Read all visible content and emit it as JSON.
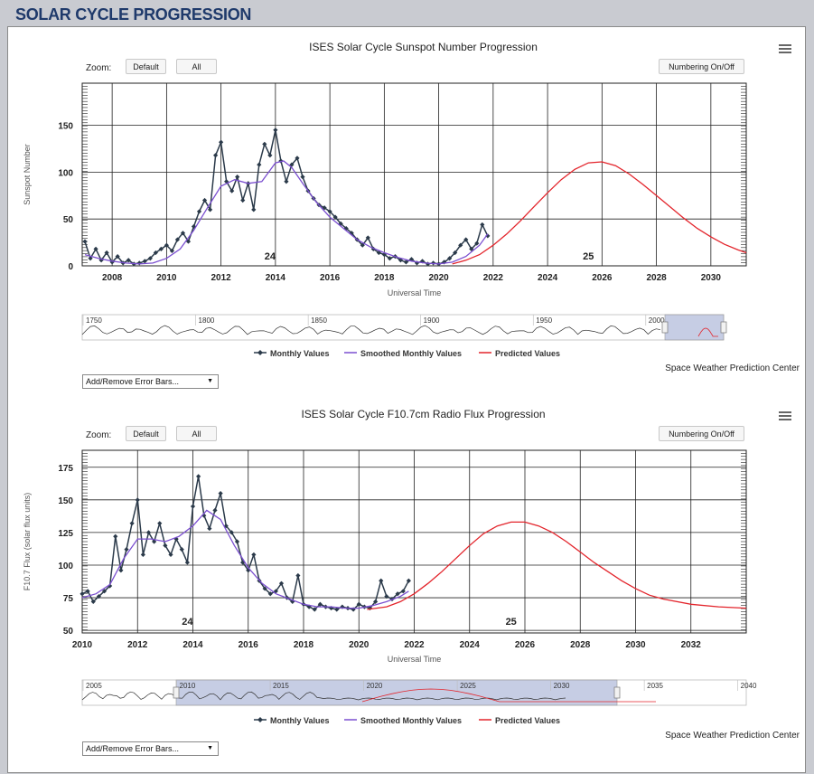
{
  "page": {
    "title": "SOLAR CYCLE PROGRESSION"
  },
  "colors": {
    "monthly": "#2b3a4a",
    "smoothed": "#7b4fd0",
    "predicted": "#e3242b",
    "navigator_fill": "#aeb8d8"
  },
  "charts": [
    {
      "title": "ISES Solar Cycle Sunspot Number Progression",
      "zoom_label": "Zoom:",
      "buttons": {
        "default": "Default",
        "all": "All",
        "numbering": "Numbering On/Off"
      },
      "legend": {
        "monthly": "Monthly Values",
        "smoothed": "Smoothed Monthly Values",
        "predicted": "Predicted Values"
      },
      "credit": "Space Weather Prediction Center",
      "error_bars_select": "Add/Remove Error Bars...",
      "navigator_labels": [
        "1750",
        "1800",
        "1850",
        "1900",
        "1950",
        "2000"
      ]
    },
    {
      "title": "ISES Solar Cycle F10.7cm Radio Flux Progression",
      "zoom_label": "Zoom:",
      "buttons": {
        "default": "Default",
        "all": "All",
        "numbering": "Numbering On/Off"
      },
      "legend": {
        "monthly": "Monthly Values",
        "smoothed": "Smoothed Monthly Values",
        "predicted": "Predicted Values"
      },
      "credit": "Space Weather Prediction Center",
      "error_bars_select": "Add/Remove Error Bars...",
      "navigator_labels": [
        "2005",
        "2010",
        "2015",
        "2020",
        "2025",
        "2030",
        "2035",
        "2040"
      ]
    }
  ],
  "chart_data": [
    {
      "type": "line",
      "title": "ISES Solar Cycle Sunspot Number Progression",
      "xlabel": "Universal Time",
      "ylabel": "Sunspot Number",
      "xlim": [
        2006.9,
        2031.3
      ],
      "ylim": [
        0,
        195
      ],
      "x_ticks": [
        2008,
        2010,
        2012,
        2014,
        2016,
        2018,
        2020,
        2022,
        2024,
        2026,
        2028,
        2030
      ],
      "y_ticks": [
        0,
        50,
        100,
        150
      ],
      "cycle_labels": [
        {
          "text": "24",
          "x": 2013.8,
          "y": 5
        },
        {
          "text": "25",
          "x": 2025.5,
          "y": 5
        }
      ],
      "series": [
        {
          "name": "Monthly Values",
          "x": [
            2007.0,
            2007.2,
            2007.4,
            2007.6,
            2007.8,
            2008.0,
            2008.2,
            2008.4,
            2008.6,
            2008.8,
            2009.0,
            2009.2,
            2009.4,
            2009.6,
            2009.8,
            2010.0,
            2010.2,
            2010.4,
            2010.6,
            2010.8,
            2011.0,
            2011.2,
            2011.4,
            2011.6,
            2011.8,
            2012.0,
            2012.2,
            2012.4,
            2012.6,
            2012.8,
            2013.0,
            2013.2,
            2013.4,
            2013.6,
            2013.8,
            2014.0,
            2014.2,
            2014.4,
            2014.6,
            2014.8,
            2015.0,
            2015.2,
            2015.4,
            2015.6,
            2015.8,
            2016.0,
            2016.2,
            2016.4,
            2016.6,
            2016.8,
            2017.0,
            2017.2,
            2017.4,
            2017.6,
            2017.8,
            2018.0,
            2018.2,
            2018.4,
            2018.6,
            2018.8,
            2019.0,
            2019.2,
            2019.4,
            2019.6,
            2019.8,
            2020.0,
            2020.2,
            2020.4,
            2020.6,
            2020.8,
            2021.0,
            2021.2,
            2021.4,
            2021.6,
            2021.8
          ],
          "values": [
            26,
            8,
            18,
            6,
            14,
            4,
            10,
            3,
            6,
            2,
            3,
            5,
            8,
            14,
            18,
            22,
            16,
            28,
            35,
            26,
            42,
            58,
            70,
            60,
            118,
            132,
            90,
            80,
            95,
            70,
            88,
            60,
            108,
            130,
            118,
            145,
            112,
            90,
            108,
            115,
            95,
            80,
            72,
            65,
            62,
            58,
            52,
            45,
            40,
            35,
            28,
            22,
            30,
            18,
            14,
            12,
            8,
            10,
            6,
            4,
            7,
            3,
            5,
            2,
            3,
            2,
            4,
            8,
            14,
            22,
            28,
            18,
            24,
            44,
            32
          ]
        },
        {
          "name": "Smoothed Monthly Values",
          "x": [
            2007.0,
            2007.5,
            2008.0,
            2008.5,
            2009.0,
            2009.5,
            2010.0,
            2010.5,
            2011.0,
            2011.5,
            2012.0,
            2012.5,
            2013.0,
            2013.5,
            2014.0,
            2014.3,
            2014.6,
            2015.0,
            2015.5,
            2016.0,
            2016.5,
            2017.0,
            2017.5,
            2018.0,
            2018.5,
            2019.0,
            2019.5,
            2020.0,
            2020.5,
            2021.0,
            2021.5,
            2021.8
          ],
          "values": [
            12,
            8,
            5,
            3,
            2,
            3,
            8,
            18,
            38,
            62,
            85,
            92,
            88,
            90,
            110,
            112,
            105,
            88,
            68,
            52,
            40,
            28,
            20,
            14,
            9,
            5,
            3,
            2,
            4,
            10,
            22,
            34
          ]
        },
        {
          "name": "Predicted Values",
          "x": [
            2020.5,
            2021.0,
            2021.5,
            2022.0,
            2022.5,
            2023.0,
            2023.5,
            2024.0,
            2024.5,
            2025.0,
            2025.5,
            2026.0,
            2026.5,
            2027.0,
            2027.5,
            2028.0,
            2028.5,
            2029.0,
            2029.5,
            2030.0,
            2030.5,
            2031.0,
            2031.3
          ],
          "values": [
            2,
            6,
            12,
            22,
            34,
            48,
            63,
            78,
            92,
            103,
            110,
            111,
            107,
            98,
            87,
            75,
            63,
            51,
            40,
            31,
            23,
            17,
            14
          ]
        }
      ]
    },
    {
      "type": "line",
      "title": "ISES Solar Cycle F10.7cm Radio Flux Progression",
      "xlabel": "Universal Time",
      "ylabel": "F10.7 Flux (solar flux units)",
      "xlim": [
        2010.0,
        2034.0
      ],
      "ylim": [
        48,
        188
      ],
      "x_ticks": [
        2010,
        2012,
        2014,
        2016,
        2018,
        2020,
        2022,
        2024,
        2026,
        2028,
        2030,
        2032
      ],
      "y_ticks": [
        50,
        75,
        100,
        125,
        150,
        175
      ],
      "cycle_labels": [
        {
          "text": "24",
          "x": 2013.8,
          "y": 53
        },
        {
          "text": "25",
          "x": 2025.5,
          "y": 53
        }
      ],
      "series": [
        {
          "name": "Monthly Values",
          "x": [
            2010.0,
            2010.2,
            2010.4,
            2010.6,
            2010.8,
            2011.0,
            2011.2,
            2011.4,
            2011.6,
            2011.8,
            2012.0,
            2012.2,
            2012.4,
            2012.6,
            2012.8,
            2013.0,
            2013.2,
            2013.4,
            2013.6,
            2013.8,
            2014.0,
            2014.2,
            2014.4,
            2014.6,
            2014.8,
            2015.0,
            2015.2,
            2015.4,
            2015.6,
            2015.8,
            2016.0,
            2016.2,
            2016.4,
            2016.6,
            2016.8,
            2017.0,
            2017.2,
            2017.4,
            2017.6,
            2017.8,
            2018.0,
            2018.2,
            2018.4,
            2018.6,
            2018.8,
            2019.0,
            2019.2,
            2019.4,
            2019.6,
            2019.8,
            2020.0,
            2020.2,
            2020.4,
            2020.6,
            2020.8,
            2021.0,
            2021.2,
            2021.4,
            2021.6,
            2021.8
          ],
          "values": [
            78,
            80,
            72,
            76,
            80,
            84,
            122,
            96,
            112,
            132,
            150,
            108,
            125,
            118,
            132,
            115,
            108,
            120,
            112,
            102,
            145,
            168,
            138,
            128,
            142,
            155,
            130,
            125,
            118,
            102,
            96,
            108,
            88,
            82,
            78,
            80,
            86,
            75,
            72,
            92,
            70,
            68,
            66,
            70,
            68,
            67,
            66,
            68,
            67,
            66,
            70,
            68,
            67,
            72,
            88,
            76,
            74,
            78,
            80,
            88
          ]
        },
        {
          "name": "Smoothed Monthly Values",
          "x": [
            2010.0,
            2010.5,
            2011.0,
            2011.5,
            2012.0,
            2012.5,
            2013.0,
            2013.5,
            2014.0,
            2014.5,
            2015.0,
            2015.5,
            2016.0,
            2016.5,
            2017.0,
            2017.5,
            2018.0,
            2018.5,
            2019.0,
            2019.5,
            2020.0,
            2020.5,
            2021.0,
            2021.5,
            2021.8
          ],
          "values": [
            75,
            78,
            85,
            105,
            120,
            120,
            118,
            122,
            130,
            142,
            135,
            115,
            98,
            86,
            78,
            74,
            70,
            68,
            68,
            67,
            67,
            69,
            72,
            76,
            80
          ]
        },
        {
          "name": "Predicted Values",
          "x": [
            2020.3,
            2021.0,
            2021.5,
            2022.0,
            2022.5,
            2023.0,
            2023.5,
            2024.0,
            2024.5,
            2025.0,
            2025.5,
            2026.0,
            2026.5,
            2027.0,
            2027.5,
            2028.0,
            2028.5,
            2029.0,
            2029.5,
            2030.0,
            2030.5,
            2031.0,
            2032.0,
            2033.0,
            2034.0
          ],
          "values": [
            66,
            68,
            72,
            78,
            86,
            95,
            105,
            115,
            124,
            130,
            133,
            133,
            130,
            125,
            118,
            110,
            102,
            95,
            88,
            82,
            77,
            74,
            70,
            68,
            67
          ]
        }
      ]
    }
  ]
}
